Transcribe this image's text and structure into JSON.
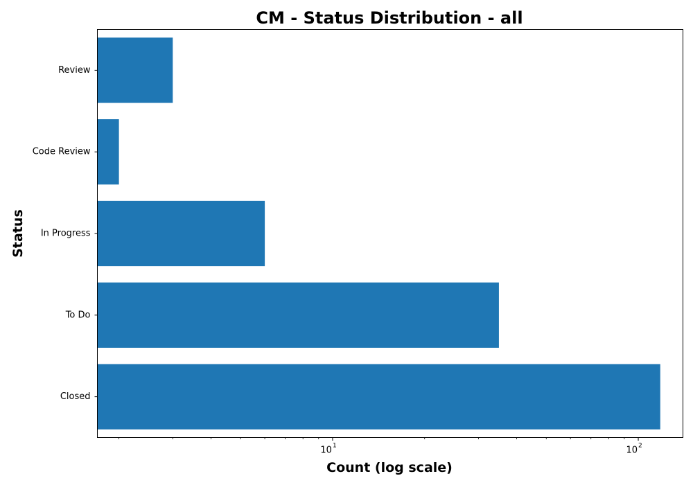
{
  "chart_data": {
    "type": "bar",
    "orientation": "horizontal",
    "title": "CM - Status Distribution - all",
    "xlabel": "Count (log scale)",
    "ylabel": "Status",
    "x_scale": "log",
    "xlim": [
      1.7,
      140
    ],
    "categories": [
      "Review",
      "Code Review",
      "In Progress",
      "To Do",
      "Closed"
    ],
    "values": [
      3,
      2,
      6,
      35,
      118
    ],
    "bar_color": "#1f77b4",
    "x_major_ticks": [
      {
        "value": 10,
        "base": "10",
        "exp": "1"
      },
      {
        "value": 100,
        "base": "10",
        "exp": "2"
      }
    ],
    "grid": false,
    "legend": "none"
  }
}
